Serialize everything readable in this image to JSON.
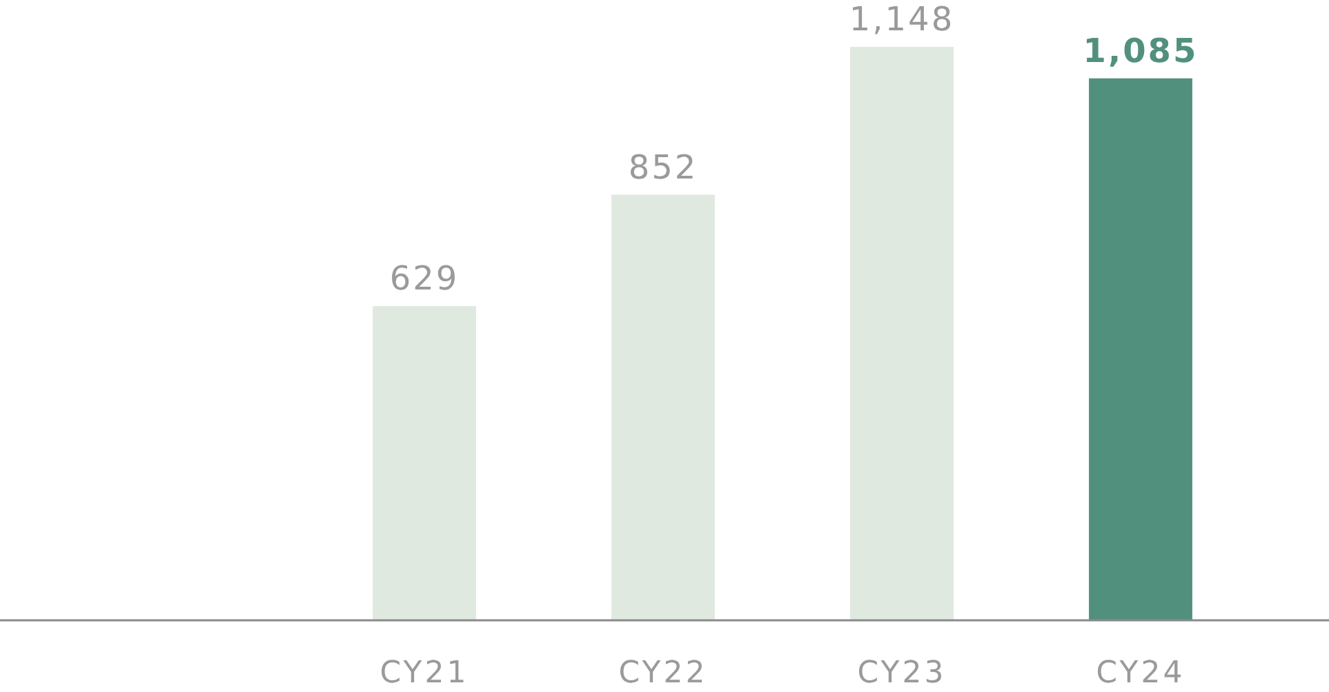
{
  "chart_data": {
    "type": "bar",
    "categories": [
      null,
      "CY21",
      "CY22",
      "CY23",
      "CY24"
    ],
    "values": [
      null,
      629,
      852,
      1148,
      1085
    ],
    "colors": [
      null,
      "#dfe9e0",
      "#dfe9e0",
      "#dfe9e0",
      "#52907e"
    ],
    "value_labels": [
      null,
      "629",
      "852",
      "1,148",
      "1,085"
    ]
  }
}
